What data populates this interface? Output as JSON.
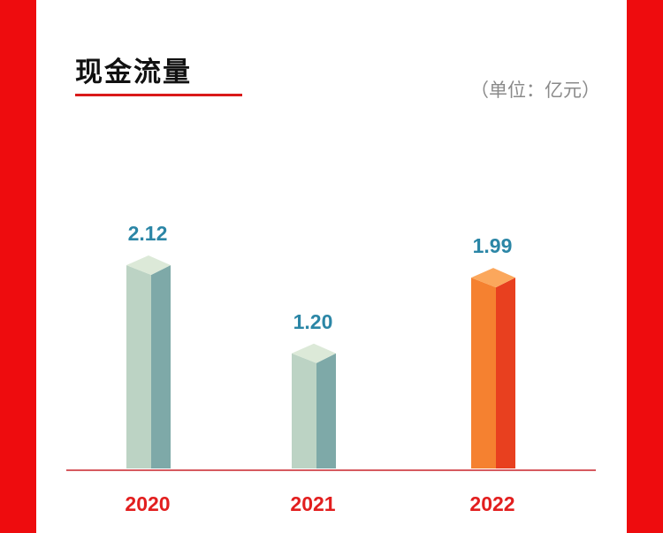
{
  "header": {
    "title": "现金流量",
    "unit": "（单位：亿元）"
  },
  "colors": {
    "side_bar": "#ee0c0e",
    "title_underline": "#d91a1a",
    "value_label": "#2b86a6",
    "category_label": "#e21e1e",
    "baseline": "#c8232a",
    "bar_normal_front": "#bcd3c4",
    "bar_normal_side": "#7ea9a8",
    "bar_normal_top": "#dce9d8",
    "bar_highlight_front": "#f58130",
    "bar_highlight_side": "#e8401f",
    "bar_highlight_top": "#fba75c"
  },
  "chart_data": {
    "type": "bar",
    "title": "现金流量",
    "unit": "（单位：亿元）",
    "categories": [
      "2020",
      "2021",
      "2022"
    ],
    "values": [
      2.12,
      1.2,
      1.99
    ],
    "value_labels": [
      "2.12",
      "1.20",
      "1.99"
    ],
    "highlight_index": 2,
    "ylim": [
      0,
      2.2
    ],
    "grid": false,
    "legend": "none"
  }
}
